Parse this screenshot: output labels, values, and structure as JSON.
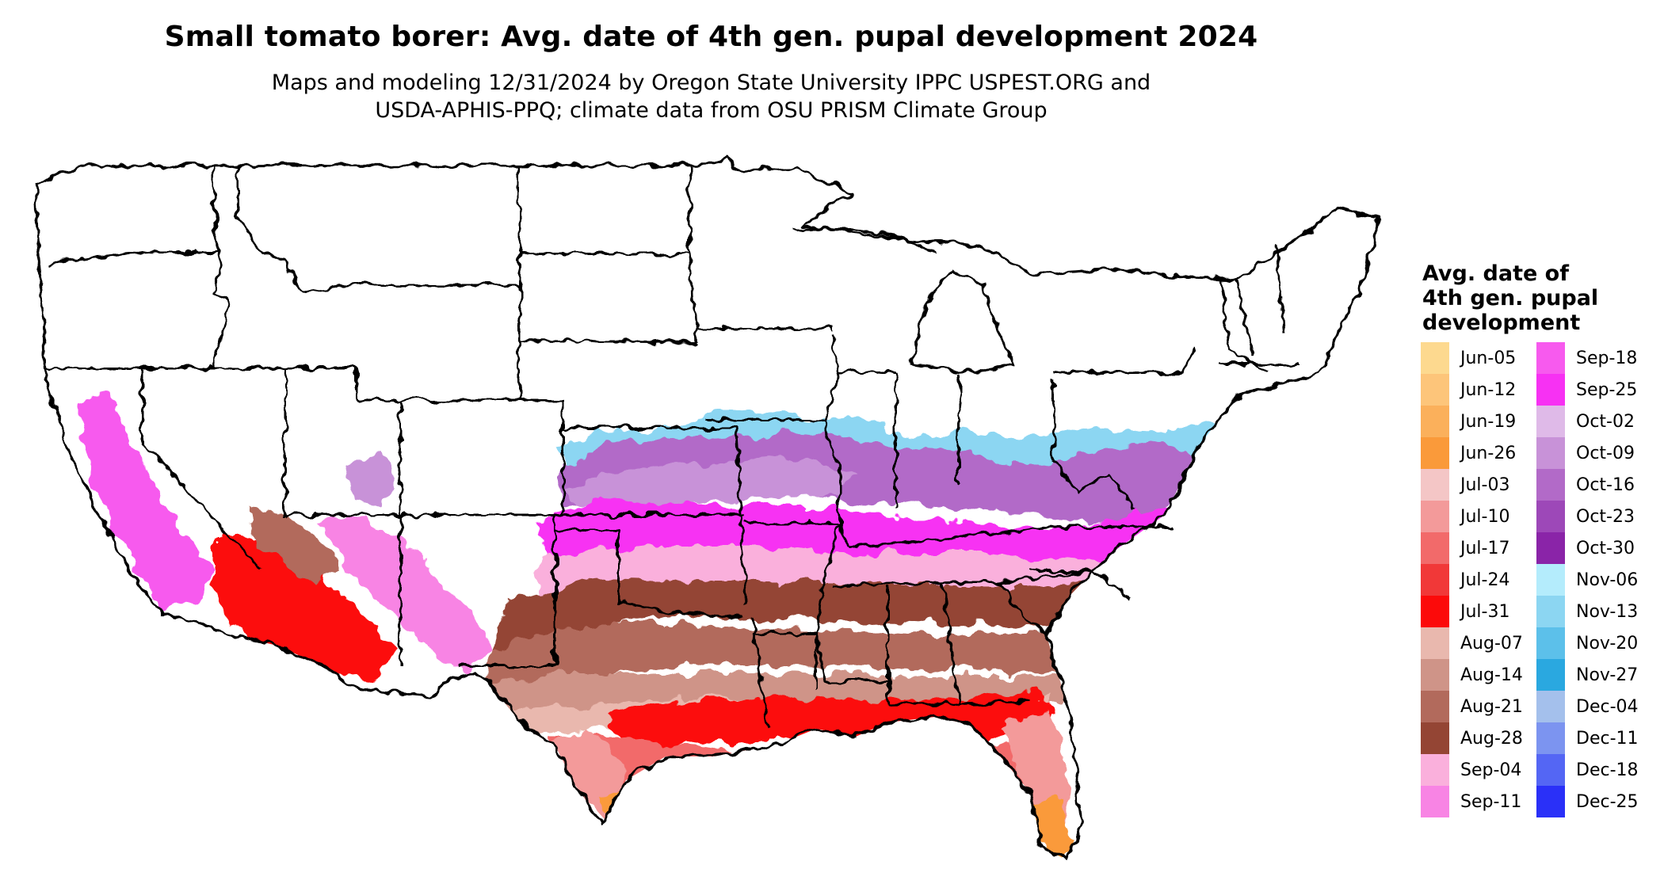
{
  "title": "Small tomato borer: Avg. date of 4th gen. pupal development 2024",
  "subtitle_line1": "Maps and modeling 12/31/2024 by Oregon State University IPPC USPEST.ORG and",
  "subtitle_line2": "USDA-APHIS-PPQ; climate data from OSU PRISM Climate Group",
  "legend": {
    "title_lines": [
      "Avg. date of",
      "4th gen. pupal",
      "development"
    ],
    "items": [
      {
        "label": "Jun-05",
        "color": "#FDD98F"
      },
      {
        "label": "Jun-12",
        "color": "#FDC57A"
      },
      {
        "label": "Jun-19",
        "color": "#FBB05B"
      },
      {
        "label": "Jun-26",
        "color": "#FA9A3A"
      },
      {
        "label": "Jul-03",
        "color": "#F4C6C6"
      },
      {
        "label": "Jul-10",
        "color": "#F39A9A"
      },
      {
        "label": "Jul-17",
        "color": "#F26A6A"
      },
      {
        "label": "Jul-24",
        "color": "#F13838"
      },
      {
        "label": "Jul-31",
        "color": "#FC0A0A"
      },
      {
        "label": "Aug-07",
        "color": "#E9B8AE"
      },
      {
        "label": "Aug-14",
        "color": "#CF9488"
      },
      {
        "label": "Aug-21",
        "color": "#B26A5C"
      },
      {
        "label": "Aug-28",
        "color": "#944534"
      },
      {
        "label": "Sep-04",
        "color": "#FAB0DC"
      },
      {
        "label": "Sep-11",
        "color": "#F884E4"
      },
      {
        "label": "Sep-18",
        "color": "#F75AEE"
      },
      {
        "label": "Sep-25",
        "color": "#F731F3"
      },
      {
        "label": "Oct-02",
        "color": "#DFBAE8"
      },
      {
        "label": "Oct-09",
        "color": "#C892D8"
      },
      {
        "label": "Oct-16",
        "color": "#B26AC8"
      },
      {
        "label": "Oct-23",
        "color": "#9D48B8"
      },
      {
        "label": "Oct-30",
        "color": "#8A24A8"
      },
      {
        "label": "Nov-06",
        "color": "#B4ECFC"
      },
      {
        "label": "Nov-13",
        "color": "#8CD6F2"
      },
      {
        "label": "Nov-20",
        "color": "#5CC0EA"
      },
      {
        "label": "Nov-27",
        "color": "#2AA8E0"
      },
      {
        "label": "Dec-04",
        "color": "#A4C0EC"
      },
      {
        "label": "Dec-11",
        "color": "#7C94F0"
      },
      {
        "label": "Dec-18",
        "color": "#5466F4"
      },
      {
        "label": "Dec-25",
        "color": "#2A30F8"
      }
    ]
  }
}
